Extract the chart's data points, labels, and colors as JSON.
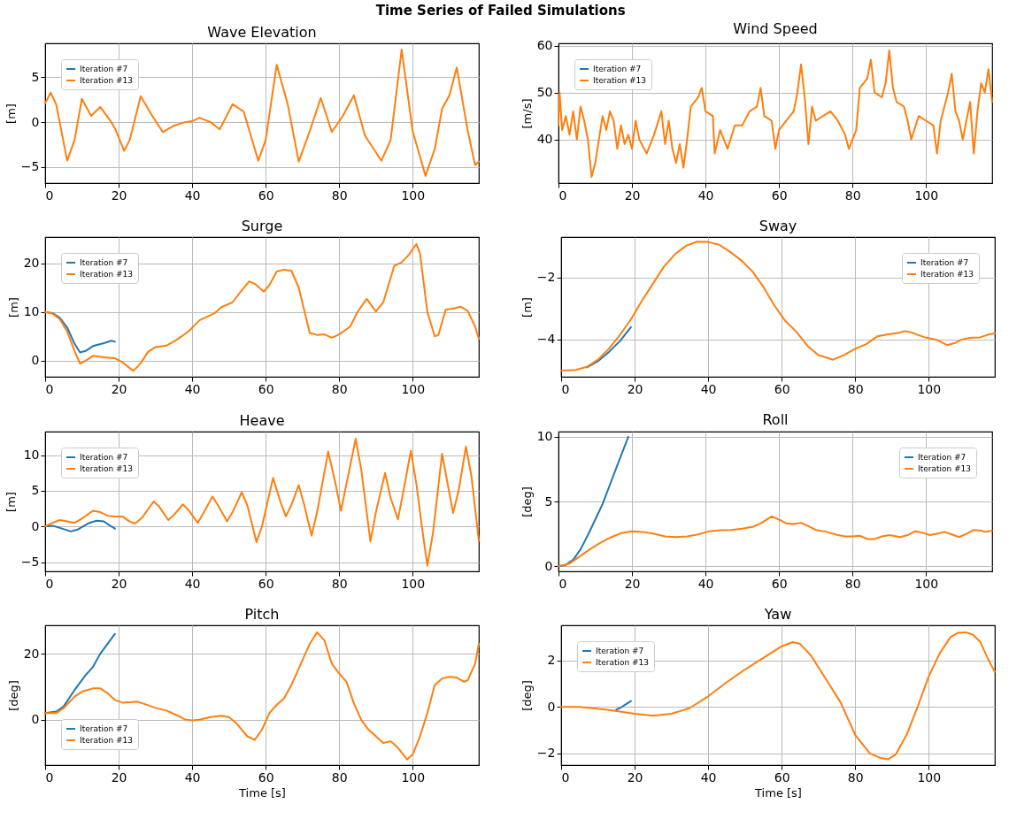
{
  "chart_data": [
    {
      "type": "other",
      "title": "Time Series of Failed Simulations"
    },
    {
      "type": "line",
      "title": "Wave Elevation",
      "ylabel": "[m]",
      "xlim": [
        0,
        118
      ],
      "xticks": [
        0,
        20,
        40,
        60,
        80,
        100
      ],
      "ylim": [
        -6.8,
        8.8
      ],
      "yticks": [
        -5,
        0,
        5
      ],
      "grid": true,
      "legend": "top left",
      "series": [
        {
          "name": "Iteration #7",
          "color": "#1f77b4"
        },
        {
          "name": "Iteration #13",
          "color": "#ff7f0e",
          "x": [
            0,
            1.5,
            3,
            6,
            8,
            10,
            12.5,
            15,
            18,
            19,
            21.5,
            23,
            26,
            29,
            32,
            35,
            38,
            40,
            42,
            45,
            47.5,
            51,
            54,
            58,
            60,
            63,
            66,
            69,
            72,
            75,
            78,
            81,
            84,
            87,
            91.5,
            94,
            97,
            100,
            103.5,
            106,
            108,
            110,
            112,
            115,
            117,
            118
          ],
          "values": [
            2.1,
            3.3,
            2,
            -4.3,
            -2,
            2.6,
            0.7,
            1.7,
            0,
            -0.7,
            -3.2,
            -2,
            2.9,
            0.8,
            -1.1,
            -0.4,
            0,
            0.1,
            0.5,
            0,
            -0.8,
            2,
            1.2,
            -4.3,
            -2,
            6.4,
            2,
            -4.4,
            -1,
            2.7,
            -1.1,
            0.7,
            3,
            -1.5,
            -4.3,
            -2,
            8.1,
            -1,
            -6,
            -3,
            1.5,
            3,
            6.1,
            -1,
            -4.8,
            -4.4
          ]
        }
      ]
    },
    {
      "type": "line",
      "title": "Wind Speed",
      "ylabel": "[m/s]",
      "xlim": [
        0,
        118
      ],
      "xticks": [
        0,
        20,
        40,
        60,
        80,
        100
      ],
      "ylim": [
        30.7,
        60.5
      ],
      "yticks": [
        40,
        50,
        60
      ],
      "grid": true,
      "legend": "top left",
      "series": [
        {
          "name": "Iteration #7",
          "color": "#1f77b4"
        },
        {
          "name": "Iteration #13",
          "color": "#ff7f0e",
          "x": [
            0,
            0.3,
            1,
            2,
            3,
            4,
            5,
            6,
            7,
            8,
            9,
            10,
            11,
            12,
            13,
            14,
            15,
            16,
            17,
            18,
            19,
            20,
            21,
            22,
            24,
            26,
            28,
            29,
            30,
            31,
            32,
            33,
            34,
            35,
            36,
            38,
            39,
            40,
            42,
            42.5,
            44,
            46,
            48,
            50,
            52,
            54,
            55,
            56,
            58,
            59,
            60,
            62,
            64,
            65,
            66,
            67,
            68,
            69,
            70,
            72,
            74,
            76,
            78,
            79,
            80,
            81,
            82,
            84,
            85,
            86,
            88,
            89,
            90,
            91,
            92,
            94,
            95,
            96,
            98,
            100,
            102,
            103,
            104,
            106,
            107,
            108,
            109,
            110,
            112,
            113,
            114,
            115,
            116,
            117,
            118
          ],
          "values": [
            43,
            50,
            42,
            45,
            41,
            46,
            40,
            47,
            44,
            40,
            32,
            35,
            40,
            45,
            42,
            46,
            44,
            38,
            43,
            39,
            41,
            38,
            44,
            40,
            37,
            41,
            46,
            39,
            44,
            38,
            35,
            39,
            34,
            40,
            47,
            49,
            51,
            46,
            45,
            37,
            42,
            38,
            43,
            43,
            46,
            47,
            51,
            45,
            44,
            38,
            42,
            44,
            46,
            50,
            56,
            49,
            39,
            47,
            44,
            45,
            46,
            44,
            41,
            38,
            40,
            42,
            51,
            53,
            57,
            50,
            49,
            52,
            59,
            51,
            48,
            47,
            44,
            40,
            45,
            44,
            43,
            37,
            44,
            50,
            54,
            46,
            44,
            40,
            48,
            37,
            46,
            52,
            50,
            55,
            48
          ]
        }
      ]
    },
    {
      "type": "line",
      "title": "Surge",
      "ylabel": "[m]",
      "xlim": [
        0,
        118
      ],
      "xticks": [
        0,
        20,
        40,
        60,
        80,
        100
      ],
      "ylim": [
        -3.3,
        25.4
      ],
      "yticks": [
        0,
        10,
        20
      ],
      "grid": true,
      "legend": "top left",
      "series": [
        {
          "name": "Iteration #7",
          "color": "#1f77b4",
          "x": [
            0,
            2,
            4,
            6,
            8,
            9.5,
            11,
            13,
            16,
            18,
            19
          ],
          "values": [
            10,
            9.8,
            8.8,
            6.8,
            3.5,
            1.7,
            2,
            3,
            3.6,
            4.1,
            3.9
          ]
        },
        {
          "name": "Iteration #13",
          "color": "#ff7f0e",
          "x": [
            0,
            2,
            4,
            6,
            8,
            9.5,
            11,
            13,
            16,
            19,
            21,
            24,
            26,
            28,
            30,
            33,
            36,
            39,
            42,
            46,
            48,
            51,
            53,
            55.5,
            57,
            59.5,
            61,
            63,
            65,
            67,
            69,
            72,
            74,
            76,
            78,
            80,
            83,
            85,
            87.5,
            90,
            92,
            95,
            97,
            99,
            101,
            102,
            104,
            106,
            107,
            109,
            111,
            113,
            115,
            117,
            118
          ],
          "values": [
            10,
            9.7,
            8.5,
            6,
            2,
            -0.6,
            0,
            1,
            0.7,
            0.5,
            -0.3,
            -2.1,
            -0.5,
            1.8,
            2.8,
            3.1,
            4.4,
            6,
            8.3,
            9.7,
            11,
            12,
            14,
            16.3,
            15.8,
            14.2,
            15.5,
            18.3,
            18.7,
            18.5,
            15,
            5.7,
            5.3,
            5.4,
            4.7,
            5.4,
            7,
            10,
            12.7,
            10.1,
            12,
            19.5,
            20.2,
            21.8,
            24,
            22,
            10,
            5,
            5.3,
            10.5,
            10.7,
            11.1,
            10.2,
            7,
            4.5
          ]
        }
      ]
    },
    {
      "type": "line",
      "title": "Sway",
      "ylabel": "[m]",
      "xlim": [
        0,
        118
      ],
      "xticks": [
        0,
        20,
        40,
        60,
        80,
        100
      ],
      "ylim": [
        -5.2,
        -0.7
      ],
      "yticks": [
        -4,
        -2
      ],
      "grid": true,
      "legend": "top right",
      "series": [
        {
          "name": "Iteration #7",
          "color": "#1f77b4",
          "x": [
            7,
            10,
            13,
            16,
            19
          ],
          "values": [
            -4.9,
            -4.7,
            -4.4,
            -4.05,
            -3.6
          ]
        },
        {
          "name": "Iteration #13",
          "color": "#ff7f0e",
          "x": [
            0,
            4,
            7,
            10,
            13,
            16,
            19,
            22,
            25,
            28,
            31,
            34,
            37,
            40,
            43,
            46,
            49,
            52,
            55,
            58,
            61,
            64,
            67,
            70,
            74,
            77,
            80,
            83,
            86,
            89,
            92,
            93.5,
            95,
            97,
            99,
            102,
            105,
            107,
            109,
            111,
            114,
            116,
            118
          ],
          "values": [
            -5,
            -4.98,
            -4.88,
            -4.65,
            -4.3,
            -3.85,
            -3.35,
            -2.75,
            -2.2,
            -1.65,
            -1.25,
            -0.98,
            -0.85,
            -0.86,
            -0.95,
            -1.18,
            -1.45,
            -1.8,
            -2.3,
            -2.9,
            -3.4,
            -3.75,
            -4.2,
            -4.5,
            -4.65,
            -4.5,
            -4.3,
            -4.15,
            -3.9,
            -3.83,
            -3.78,
            -3.73,
            -3.76,
            -3.85,
            -3.93,
            -4,
            -4.18,
            -4.12,
            -4,
            -3.95,
            -3.93,
            -3.85,
            -3.8
          ]
        }
      ]
    },
    {
      "type": "line",
      "title": "Heave",
      "ylabel": "[m]",
      "xlim": [
        0,
        118
      ],
      "xticks": [
        0,
        20,
        40,
        60,
        80,
        100
      ],
      "ylim": [
        -6.3,
        13.3
      ],
      "yticks": [
        -5,
        0,
        5,
        10
      ],
      "grid": true,
      "legend": "top left",
      "series": [
        {
          "name": "Iteration #7",
          "color": "#1f77b4",
          "x": [
            0,
            2,
            4,
            7,
            9,
            12,
            14,
            16,
            18,
            19
          ],
          "values": [
            0,
            0.1,
            -0.2,
            -0.7,
            -0.4,
            0.5,
            0.8,
            0.7,
            0,
            -0.3
          ]
        },
        {
          "name": "Iteration #13",
          "color": "#ff7f0e",
          "x": [
            0,
            2,
            4,
            6,
            8,
            10,
            13,
            15,
            17,
            19,
            21,
            23,
            24.5,
            26.5,
            29.5,
            31,
            33.5,
            35,
            37.5,
            39,
            41.5,
            43,
            45.5,
            47,
            49.5,
            51,
            53.5,
            55,
            57.5,
            59,
            62,
            64,
            65.5,
            67,
            69,
            70.5,
            72.5,
            74,
            77,
            79,
            80.5,
            82,
            84.5,
            86,
            88.5,
            90,
            92.5,
            94,
            96,
            97.5,
            99.5,
            101,
            102.5,
            104,
            105.5,
            108,
            109.5,
            111,
            112.5,
            114.5,
            116,
            118
          ],
          "values": [
            0,
            0.5,
            0.9,
            0.7,
            0.5,
            1.1,
            2.2,
            2,
            1.5,
            1.4,
            1.4,
            0.7,
            0.4,
            1.3,
            3.5,
            2.8,
            0.9,
            1.6,
            3.1,
            2.3,
            0.5,
            1.8,
            4.2,
            3,
            0.7,
            2,
            4.8,
            3,
            -2.2,
            0,
            6.8,
            3.5,
            1.4,
            3,
            5.8,
            3,
            -1.3,
            2,
            10.5,
            6,
            2.2,
            6,
            12.3,
            8,
            -2.1,
            2,
            7.5,
            4,
            1,
            5,
            10.6,
            6,
            0,
            -5.5,
            -1,
            10.2,
            6,
            1.9,
            5,
            11.2,
            7,
            -2
          ]
        }
      ]
    },
    {
      "type": "line",
      "title": "Roll",
      "ylabel": "[deg]",
      "xlim": [
        0,
        118
      ],
      "xticks": [
        0,
        20,
        40,
        60,
        80,
        100
      ],
      "ylim": [
        -0.4,
        10.4
      ],
      "yticks": [
        0,
        5,
        10
      ],
      "grid": true,
      "legend": "top right",
      "series": [
        {
          "name": "Iteration #7",
          "color": "#1f77b4",
          "x": [
            0,
            2,
            4,
            6,
            8,
            10,
            12,
            14,
            16,
            19
          ],
          "values": [
            0,
            0.1,
            0.5,
            1.3,
            2.4,
            3.6,
            4.8,
            6.3,
            7.8,
            10
          ]
        },
        {
          "name": "Iteration #13",
          "color": "#ff7f0e",
          "x": [
            0,
            3,
            5,
            8,
            11,
            14,
            17,
            20,
            23,
            26,
            29,
            32,
            35,
            38,
            41,
            44,
            47,
            50,
            53,
            55,
            58,
            60,
            62,
            64,
            66,
            68,
            70,
            73,
            76,
            78,
            80,
            82,
            84,
            86,
            88,
            90,
            93,
            95,
            97,
            99,
            101,
            103,
            105,
            107,
            109,
            111,
            113,
            115,
            116,
            118
          ],
          "values": [
            0,
            0.2,
            0.6,
            1.2,
            1.75,
            2.2,
            2.55,
            2.7,
            2.65,
            2.5,
            2.3,
            2.25,
            2.3,
            2.45,
            2.7,
            2.78,
            2.8,
            2.9,
            3.05,
            3.3,
            3.85,
            3.6,
            3.3,
            3.25,
            3.35,
            3.1,
            2.8,
            2.65,
            2.4,
            2.3,
            2.3,
            2.35,
            2.1,
            2.1,
            2.3,
            2.4,
            2.25,
            2.4,
            2.7,
            2.6,
            2.4,
            2.5,
            2.65,
            2.45,
            2.25,
            2.5,
            2.8,
            2.75,
            2.65,
            2.75
          ]
        }
      ]
    },
    {
      "type": "line",
      "title": "Pitch",
      "ylabel": "[deg]",
      "xlabel": "Time [s]",
      "xlim": [
        0,
        118
      ],
      "xticks": [
        0,
        20,
        40,
        60,
        80,
        100
      ],
      "ylim": [
        -13.7,
        28.6
      ],
      "yticks": [
        0,
        20
      ],
      "grid": true,
      "legend": "bottom left",
      "series": [
        {
          "name": "Iteration #7",
          "color": "#1f77b4",
          "x": [
            0,
            3,
            5,
            8,
            11,
            13,
            15,
            17,
            19
          ],
          "values": [
            2,
            2.5,
            4,
            9,
            13.5,
            16,
            20,
            23,
            26
          ]
        },
        {
          "name": "Iteration #13",
          "color": "#ff7f0e",
          "x": [
            0,
            3,
            5,
            8,
            10,
            13,
            15,
            17,
            19,
            21,
            23,
            25,
            27,
            30,
            33,
            36,
            38,
            40,
            42,
            45,
            48,
            50,
            52,
            55,
            57,
            59,
            61,
            63,
            65,
            67,
            70,
            72,
            74,
            76,
            78,
            80,
            82,
            84,
            86,
            88,
            90,
            92,
            94,
            96,
            98.5,
            100,
            102,
            104,
            106,
            108,
            110,
            112,
            114,
            115,
            117,
            118
          ],
          "values": [
            2,
            2,
            3.5,
            7,
            8.5,
            9.5,
            9.5,
            8,
            6,
            5.2,
            5.3,
            5.5,
            4.8,
            3.6,
            2.8,
            1.3,
            0.1,
            -0.2,
            0,
            0.8,
            1.2,
            0.8,
            -1,
            -5,
            -6.1,
            -3,
            2,
            4.5,
            6.5,
            10.5,
            18,
            23,
            26.5,
            24,
            17,
            14,
            11.5,
            5,
            0,
            -3,
            -5,
            -7,
            -6.5,
            -8.5,
            -12,
            -10.5,
            -5,
            2,
            10.5,
            12.5,
            13,
            12.8,
            11.5,
            12,
            17,
            23
          ]
        }
      ]
    },
    {
      "type": "line",
      "title": "Yaw",
      "ylabel": "[deg]",
      "xlabel": "Time [s]",
      "xlim": [
        0,
        118
      ],
      "xticks": [
        0,
        20,
        40,
        60,
        80,
        100
      ],
      "ylim": [
        -2.5,
        3.5
      ],
      "yticks": [
        -2,
        0,
        2
      ],
      "grid": true,
      "legend": "top left",
      "series": [
        {
          "name": "Iteration #7",
          "color": "#1f77b4",
          "x": [
            15,
            16,
            17.5,
            19
          ],
          "values": [
            -0.12,
            -0.05,
            0.1,
            0.25
          ]
        },
        {
          "name": "Iteration #13",
          "color": "#ff7f0e",
          "x": [
            0,
            5,
            8,
            12,
            16,
            20,
            25,
            30,
            35,
            40,
            45,
            50,
            55,
            60,
            63,
            65,
            68,
            72,
            76,
            80,
            84,
            87,
            89,
            91,
            94,
            97,
            100,
            103,
            106,
            108,
            110,
            112,
            114,
            116,
            118
          ],
          "values": [
            0,
            0,
            -0.05,
            -0.12,
            -0.2,
            -0.3,
            -0.38,
            -0.3,
            -0.05,
            0.45,
            1.05,
            1.6,
            2.1,
            2.6,
            2.78,
            2.7,
            2.2,
            1.2,
            0.2,
            -1.2,
            -2,
            -2.2,
            -2.25,
            -2.05,
            -1.2,
            0,
            1.3,
            2.3,
            3,
            3.18,
            3.2,
            3.1,
            2.8,
            2.1,
            1.5
          ]
        }
      ]
    }
  ]
}
